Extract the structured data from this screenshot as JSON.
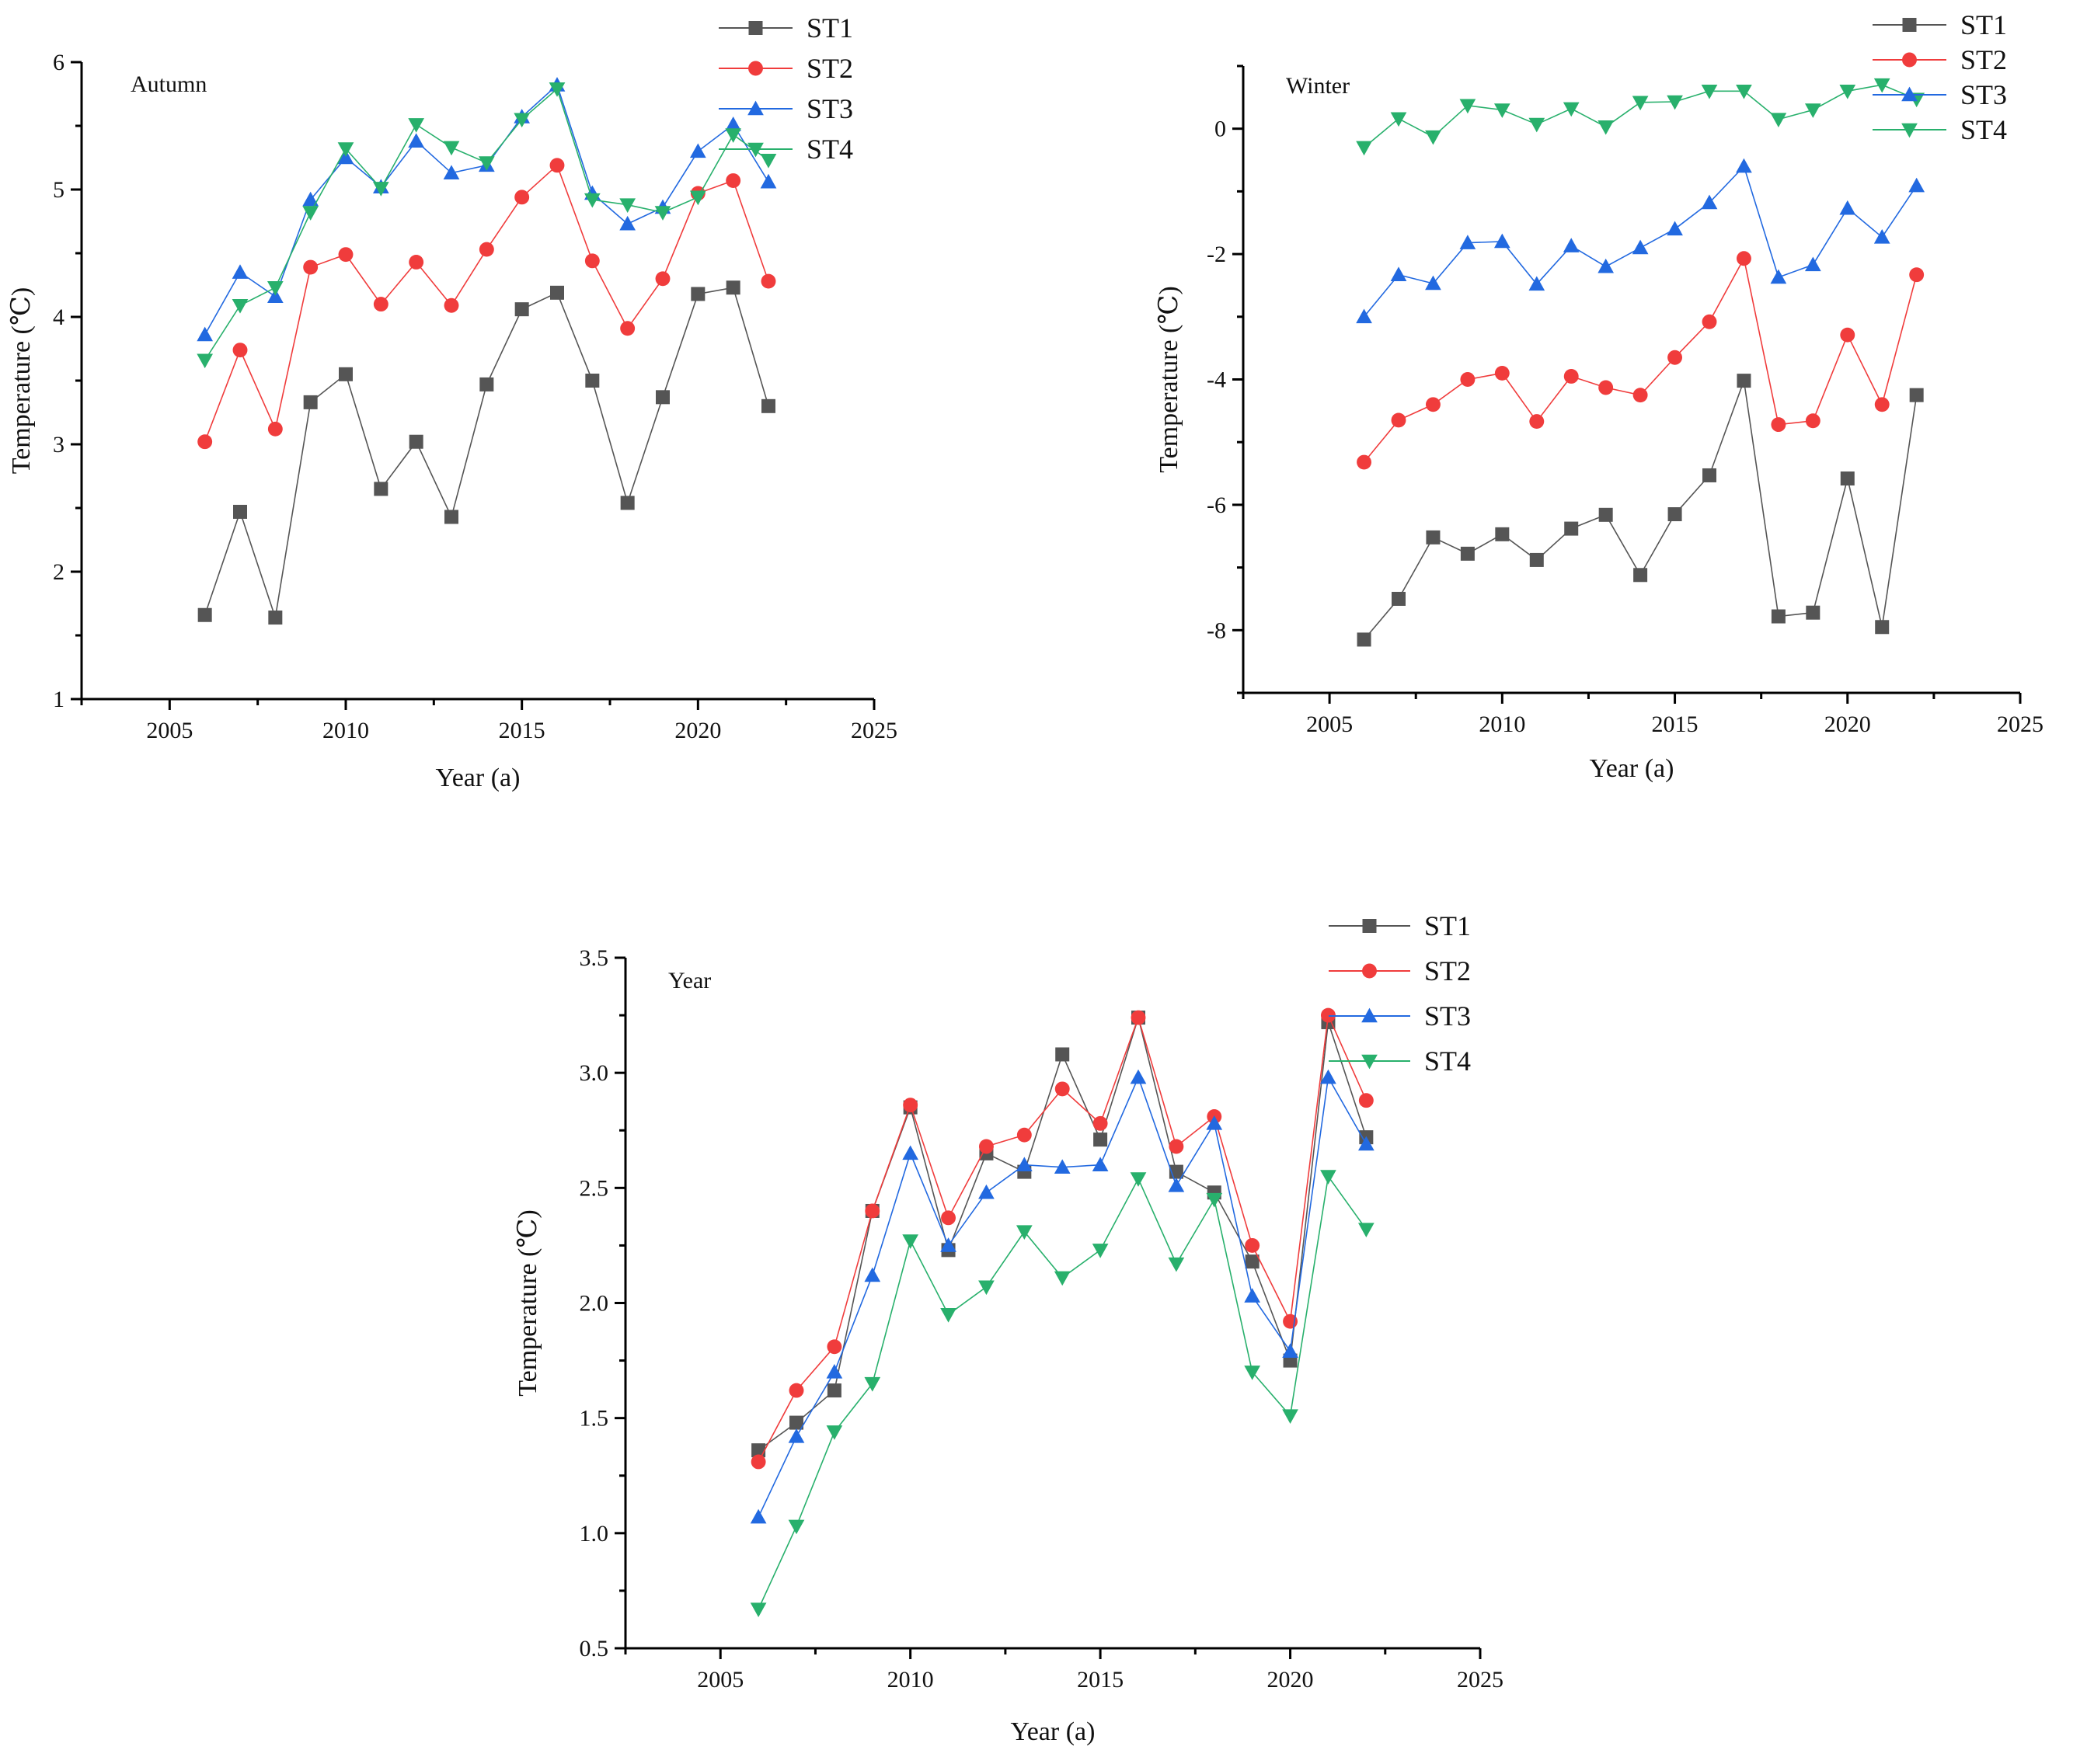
{
  "chart_data": [
    {
      "type": "line",
      "title": "Autumn",
      "xlabel": "Year (a)",
      "ylabel": "Temperature (℃)",
      "xlim": [
        2002.5,
        2025
      ],
      "ylim": [
        1,
        6
      ],
      "xticks": [
        2005,
        2010,
        2015,
        2020,
        2025
      ],
      "yticks": [
        1,
        2,
        3,
        4,
        5,
        6
      ],
      "ytick_decimals": 0,
      "legend_position": "top-right outside",
      "x": [
        2006,
        2007,
        2008,
        2009,
        2010,
        2011,
        2012,
        2013,
        2014,
        2015,
        2016,
        2017,
        2018,
        2019,
        2020,
        2021,
        2022
      ],
      "series": [
        {
          "name": "ST1",
          "values": [
            1.66,
            2.47,
            1.64,
            3.33,
            3.55,
            2.65,
            3.02,
            2.43,
            3.47,
            4.06,
            4.19,
            3.5,
            2.54,
            3.37,
            4.18,
            4.23,
            3.3
          ]
        },
        {
          "name": "ST2",
          "values": [
            3.02,
            3.74,
            3.12,
            4.39,
            4.49,
            4.1,
            4.43,
            4.09,
            4.53,
            4.94,
            5.19,
            4.44,
            3.91,
            4.3,
            4.97,
            5.07,
            4.28
          ]
        },
        {
          "name": "ST3",
          "values": [
            3.86,
            4.35,
            4.16,
            4.92,
            5.25,
            5.02,
            5.38,
            5.13,
            5.19,
            5.57,
            5.82,
            4.97,
            4.73,
            4.86,
            5.3,
            5.51,
            5.06
          ]
        },
        {
          "name": "ST4",
          "values": [
            3.66,
            4.09,
            4.23,
            4.82,
            5.32,
            5.01,
            5.51,
            5.33,
            5.21,
            5.55,
            5.79,
            4.92,
            4.88,
            4.82,
            4.94,
            5.43,
            5.23
          ]
        }
      ]
    },
    {
      "type": "line",
      "title": "Winter",
      "xlabel": "Year (a)",
      "ylabel": "Temperature (℃)",
      "xlim": [
        2002.5,
        2025
      ],
      "ylim": [
        -9,
        1
      ],
      "xticks": [
        2005,
        2010,
        2015,
        2020,
        2025
      ],
      "yticks": [
        -8,
        -6,
        -4,
        -2,
        0
      ],
      "ytick_decimals": 0,
      "legend_position": "top-right outside",
      "x": [
        2006,
        2007,
        2008,
        2009,
        2010,
        2011,
        2012,
        2013,
        2014,
        2015,
        2016,
        2017,
        2018,
        2019,
        2020,
        2021,
        2022
      ],
      "series": [
        {
          "name": "ST1",
          "values": [
            -8.15,
            -7.5,
            -6.52,
            -6.78,
            -6.47,
            -6.88,
            -6.38,
            -6.16,
            -7.12,
            -6.15,
            -5.53,
            -4.02,
            -7.78,
            -7.72,
            -5.58,
            -7.95,
            -4.25
          ]
        },
        {
          "name": "ST2",
          "values": [
            -5.32,
            -4.65,
            -4.4,
            -4.0,
            -3.9,
            -4.67,
            -3.95,
            -4.13,
            -4.25,
            -3.65,
            -3.08,
            -2.07,
            -4.72,
            -4.66,
            -3.29,
            -4.4,
            -2.33
          ]
        },
        {
          "name": "ST3",
          "values": [
            -3.0,
            -2.33,
            -2.47,
            -1.82,
            -1.8,
            -2.48,
            -1.87,
            -2.2,
            -1.9,
            -1.6,
            -1.18,
            -0.6,
            -2.37,
            -2.17,
            -1.27,
            -1.73,
            -0.91
          ]
        },
        {
          "name": "ST4",
          "values": [
            -0.3,
            0.16,
            -0.13,
            0.37,
            0.3,
            0.07,
            0.32,
            0.03,
            0.42,
            0.43,
            0.6,
            0.6,
            0.15,
            0.3,
            0.6,
            0.7,
            0.47
          ]
        }
      ]
    },
    {
      "type": "line",
      "title": "Year",
      "xlabel": "Year (a)",
      "ylabel": "Temperature (℃)",
      "xlim": [
        2002.5,
        2025
      ],
      "ylim": [
        0.5,
        3.5
      ],
      "xticks": [
        2005,
        2010,
        2015,
        2020,
        2025
      ],
      "yticks": [
        0.5,
        1.0,
        1.5,
        2.0,
        2.5,
        3.0,
        3.5
      ],
      "ytick_decimals": 1,
      "legend_position": "top-right outside",
      "x": [
        2006,
        2007,
        2008,
        2009,
        2010,
        2011,
        2012,
        2013,
        2014,
        2015,
        2016,
        2017,
        2018,
        2019,
        2020,
        2021,
        2022
      ],
      "series": [
        {
          "name": "ST1",
          "values": [
            1.36,
            1.48,
            1.62,
            2.4,
            2.85,
            2.23,
            2.65,
            2.57,
            3.08,
            2.71,
            3.24,
            2.57,
            2.48,
            2.18,
            1.75,
            3.22,
            2.72
          ]
        },
        {
          "name": "ST2",
          "values": [
            1.31,
            1.62,
            1.81,
            2.4,
            2.86,
            2.37,
            2.68,
            2.73,
            2.93,
            2.78,
            3.24,
            2.68,
            2.81,
            2.25,
            1.92,
            3.25,
            2.88
          ]
        },
        {
          "name": "ST3",
          "values": [
            1.07,
            1.42,
            1.7,
            2.12,
            2.65,
            2.25,
            2.48,
            2.6,
            2.59,
            2.6,
            2.98,
            2.51,
            2.78,
            2.03,
            1.79,
            2.98,
            2.69
          ]
        },
        {
          "name": "ST4",
          "values": [
            0.67,
            1.03,
            1.44,
            1.65,
            2.27,
            1.95,
            2.07,
            2.31,
            2.11,
            2.23,
            2.54,
            2.17,
            2.45,
            1.7,
            1.51,
            2.55,
            2.32
          ]
        }
      ]
    }
  ],
  "colors": {
    "ST1": "#555555",
    "ST2": "#f03c3c",
    "ST3": "#2269e0",
    "ST4": "#28b06c"
  },
  "markers": {
    "ST1": "square",
    "ST2": "circle",
    "ST3": "triangle-up",
    "ST4": "triangle-down"
  }
}
